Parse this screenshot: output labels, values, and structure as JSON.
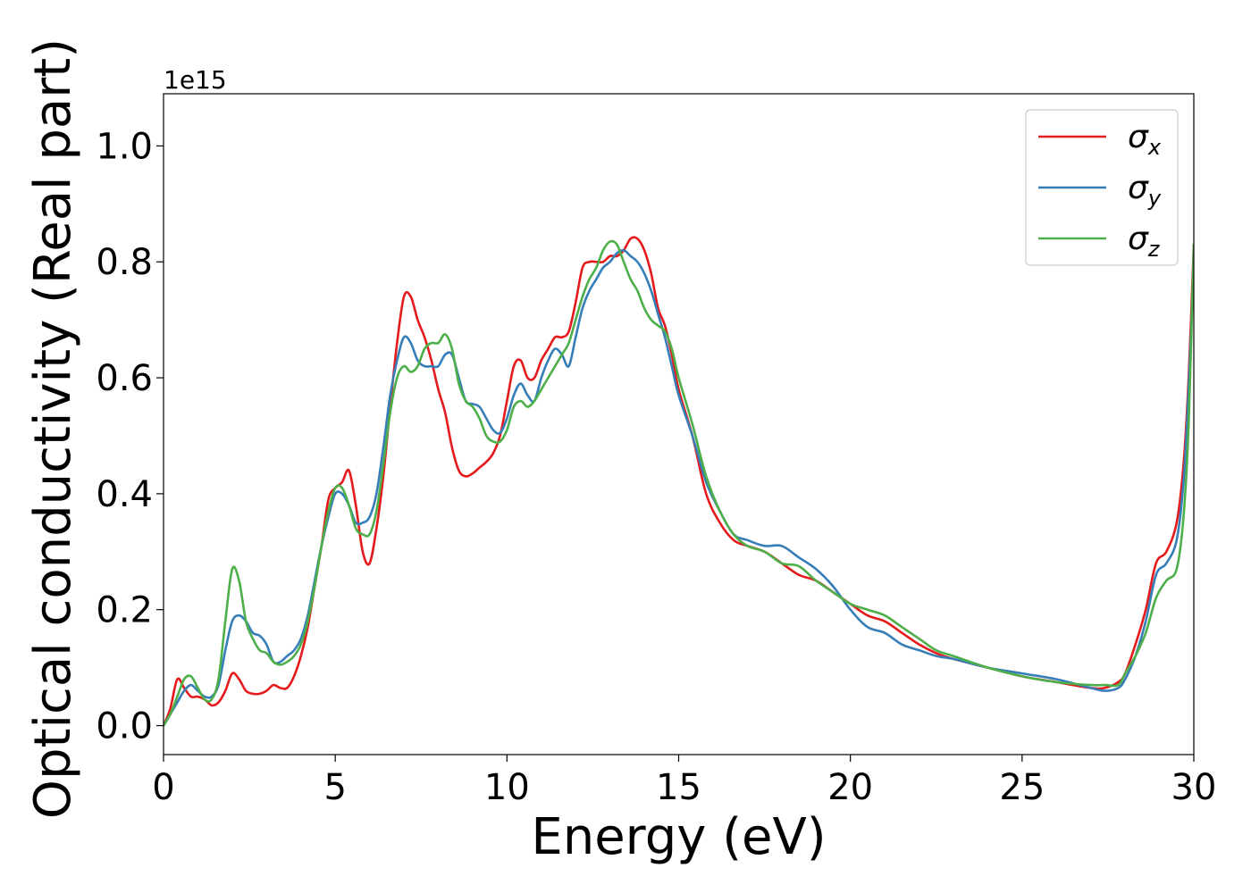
{
  "chart_data": {
    "type": "line",
    "title": "",
    "xlabel": "Energy (eV)",
    "ylabel": "Optical conductivity (Real part)",
    "y_offset_label": "1e15",
    "xlim": [
      0,
      30
    ],
    "ylim": [
      -0.05,
      1.09
    ],
    "x_ticks": [
      0,
      5,
      10,
      15,
      20,
      25,
      30
    ],
    "x_tick_labels": [
      "0",
      "5",
      "10",
      "15",
      "20",
      "25",
      "30"
    ],
    "y_ticks": [
      0.0,
      0.2,
      0.4,
      0.6,
      0.8,
      1.0
    ],
    "y_tick_labels": [
      "0.0",
      "0.2",
      "0.4",
      "0.6",
      "0.8",
      "1.0"
    ],
    "grid": false,
    "legend_position": "top-right",
    "series": [
      {
        "name": "σx",
        "symbol": "σ",
        "subscript": "x",
        "color": "#e41a1c",
        "x": [
          0,
          0.2,
          0.4,
          0.6,
          0.8,
          1.0,
          1.2,
          1.4,
          1.6,
          1.8,
          2.0,
          2.2,
          2.4,
          2.6,
          2.8,
          3.0,
          3.2,
          3.4,
          3.6,
          3.8,
          4.0,
          4.2,
          4.4,
          4.6,
          4.8,
          5.0,
          5.2,
          5.4,
          5.6,
          5.8,
          6.0,
          6.2,
          6.4,
          6.6,
          6.8,
          7.0,
          7.2,
          7.4,
          7.6,
          7.8,
          8.0,
          8.2,
          8.4,
          8.6,
          8.8,
          9.0,
          9.2,
          9.4,
          9.6,
          9.8,
          10.0,
          10.2,
          10.4,
          10.6,
          10.8,
          11.0,
          11.2,
          11.4,
          11.6,
          11.8,
          12.0,
          12.2,
          12.4,
          12.6,
          12.8,
          13.0,
          13.2,
          13.4,
          13.6,
          13.8,
          14.0,
          14.2,
          14.4,
          14.6,
          14.8,
          15.0,
          15.4,
          15.8,
          16.2,
          16.6,
          17.0,
          17.5,
          18.0,
          18.5,
          19.0,
          19.5,
          20.0,
          20.5,
          21.0,
          21.5,
          22.0,
          22.5,
          23.0,
          24.0,
          25.0,
          26.0,
          27.0,
          27.4,
          27.8,
          28.0,
          28.3,
          28.6,
          28.9,
          29.2,
          29.5,
          29.7,
          29.85,
          30.0
        ],
        "y": [
          0.0,
          0.03,
          0.08,
          0.065,
          0.05,
          0.05,
          0.045,
          0.035,
          0.04,
          0.06,
          0.09,
          0.08,
          0.06,
          0.055,
          0.055,
          0.06,
          0.07,
          0.065,
          0.065,
          0.085,
          0.12,
          0.17,
          0.24,
          0.31,
          0.39,
          0.41,
          0.42,
          0.44,
          0.38,
          0.3,
          0.28,
          0.34,
          0.43,
          0.55,
          0.66,
          0.74,
          0.74,
          0.7,
          0.67,
          0.63,
          0.58,
          0.54,
          0.48,
          0.44,
          0.43,
          0.435,
          0.445,
          0.455,
          0.47,
          0.5,
          0.56,
          0.62,
          0.63,
          0.6,
          0.6,
          0.63,
          0.65,
          0.67,
          0.67,
          0.68,
          0.73,
          0.79,
          0.8,
          0.8,
          0.8,
          0.81,
          0.81,
          0.82,
          0.84,
          0.84,
          0.82,
          0.78,
          0.72,
          0.69,
          0.64,
          0.58,
          0.5,
          0.4,
          0.35,
          0.32,
          0.31,
          0.3,
          0.28,
          0.26,
          0.25,
          0.23,
          0.21,
          0.19,
          0.18,
          0.16,
          0.14,
          0.125,
          0.115,
          0.1,
          0.085,
          0.075,
          0.065,
          0.065,
          0.075,
          0.09,
          0.14,
          0.2,
          0.28,
          0.3,
          0.35,
          0.45,
          0.6,
          0.83
        ]
      },
      {
        "name": "σy",
        "symbol": "σ",
        "subscript": "y",
        "color": "#377eb8",
        "x": [
          0,
          0.2,
          0.4,
          0.6,
          0.8,
          1.0,
          1.2,
          1.4,
          1.6,
          1.8,
          2.0,
          2.2,
          2.4,
          2.6,
          2.8,
          3.0,
          3.2,
          3.4,
          3.6,
          3.8,
          4.0,
          4.2,
          4.4,
          4.6,
          4.8,
          5.0,
          5.2,
          5.4,
          5.6,
          5.8,
          6.0,
          6.2,
          6.4,
          6.6,
          6.8,
          7.0,
          7.2,
          7.4,
          7.6,
          7.8,
          8.0,
          8.2,
          8.4,
          8.6,
          8.8,
          9.0,
          9.2,
          9.4,
          9.6,
          9.8,
          10.0,
          10.2,
          10.4,
          10.6,
          10.8,
          11.0,
          11.2,
          11.4,
          11.6,
          11.8,
          12.0,
          12.2,
          12.4,
          12.6,
          12.8,
          13.0,
          13.2,
          13.4,
          13.6,
          13.8,
          14.0,
          14.2,
          14.4,
          14.6,
          14.8,
          15.0,
          15.4,
          15.8,
          16.2,
          16.6,
          17.0,
          17.5,
          18.0,
          18.5,
          19.0,
          19.5,
          20.0,
          20.5,
          21.0,
          21.5,
          22.0,
          22.5,
          23.0,
          24.0,
          25.0,
          26.0,
          27.0,
          27.4,
          27.8,
          28.0,
          28.3,
          28.6,
          28.9,
          29.2,
          29.5,
          29.7,
          29.85,
          30.0
        ],
        "y": [
          0.0,
          0.02,
          0.04,
          0.06,
          0.07,
          0.06,
          0.05,
          0.05,
          0.07,
          0.13,
          0.18,
          0.19,
          0.18,
          0.16,
          0.155,
          0.14,
          0.11,
          0.11,
          0.12,
          0.13,
          0.15,
          0.19,
          0.25,
          0.31,
          0.36,
          0.4,
          0.4,
          0.38,
          0.35,
          0.35,
          0.36,
          0.4,
          0.48,
          0.57,
          0.63,
          0.67,
          0.66,
          0.63,
          0.62,
          0.62,
          0.62,
          0.64,
          0.64,
          0.6,
          0.56,
          0.555,
          0.55,
          0.53,
          0.51,
          0.505,
          0.53,
          0.57,
          0.59,
          0.57,
          0.56,
          0.6,
          0.63,
          0.65,
          0.64,
          0.62,
          0.67,
          0.72,
          0.75,
          0.77,
          0.79,
          0.8,
          0.815,
          0.82,
          0.81,
          0.8,
          0.78,
          0.75,
          0.71,
          0.67,
          0.62,
          0.57,
          0.5,
          0.42,
          0.37,
          0.33,
          0.32,
          0.31,
          0.31,
          0.29,
          0.27,
          0.24,
          0.2,
          0.17,
          0.16,
          0.14,
          0.13,
          0.12,
          0.115,
          0.1,
          0.09,
          0.08,
          0.065,
          0.06,
          0.065,
          0.08,
          0.12,
          0.18,
          0.26,
          0.28,
          0.32,
          0.42,
          0.58,
          0.8
        ]
      },
      {
        "name": "σz",
        "symbol": "σ",
        "subscript": "z",
        "color": "#4daf4a",
        "x": [
          0,
          0.2,
          0.4,
          0.6,
          0.8,
          1.0,
          1.2,
          1.4,
          1.6,
          1.8,
          2.0,
          2.2,
          2.4,
          2.6,
          2.8,
          3.0,
          3.2,
          3.4,
          3.6,
          3.8,
          4.0,
          4.2,
          4.4,
          4.6,
          4.8,
          5.0,
          5.2,
          5.4,
          5.6,
          5.8,
          6.0,
          6.2,
          6.4,
          6.6,
          6.8,
          7.0,
          7.2,
          7.4,
          7.6,
          7.8,
          8.0,
          8.2,
          8.4,
          8.6,
          8.8,
          9.0,
          9.2,
          9.4,
          9.6,
          9.8,
          10.0,
          10.2,
          10.4,
          10.6,
          10.8,
          11.0,
          11.2,
          11.4,
          11.6,
          11.8,
          12.0,
          12.2,
          12.4,
          12.6,
          12.8,
          13.0,
          13.2,
          13.4,
          13.6,
          13.8,
          14.0,
          14.2,
          14.4,
          14.6,
          14.8,
          15.0,
          15.4,
          15.8,
          16.2,
          16.6,
          17.0,
          17.5,
          18.0,
          18.5,
          19.0,
          19.5,
          20.0,
          20.5,
          21.0,
          21.5,
          22.0,
          22.5,
          23.0,
          24.0,
          25.0,
          26.0,
          27.0,
          27.4,
          27.8,
          28.0,
          28.3,
          28.6,
          28.9,
          29.2,
          29.5,
          29.7,
          29.85,
          30.0
        ],
        "y": [
          0.0,
          0.02,
          0.05,
          0.08,
          0.085,
          0.065,
          0.045,
          0.045,
          0.08,
          0.18,
          0.27,
          0.25,
          0.18,
          0.15,
          0.13,
          0.125,
          0.11,
          0.105,
          0.11,
          0.12,
          0.14,
          0.18,
          0.24,
          0.31,
          0.37,
          0.41,
          0.41,
          0.38,
          0.34,
          0.33,
          0.33,
          0.37,
          0.45,
          0.54,
          0.6,
          0.62,
          0.61,
          0.62,
          0.65,
          0.66,
          0.66,
          0.675,
          0.65,
          0.59,
          0.56,
          0.55,
          0.53,
          0.5,
          0.49,
          0.49,
          0.51,
          0.55,
          0.56,
          0.55,
          0.56,
          0.58,
          0.6,
          0.62,
          0.64,
          0.66,
          0.7,
          0.74,
          0.77,
          0.79,
          0.82,
          0.835,
          0.83,
          0.8,
          0.77,
          0.75,
          0.72,
          0.7,
          0.69,
          0.68,
          0.65,
          0.6,
          0.52,
          0.43,
          0.37,
          0.33,
          0.31,
          0.3,
          0.28,
          0.275,
          0.25,
          0.23,
          0.21,
          0.2,
          0.19,
          0.17,
          0.15,
          0.13,
          0.12,
          0.1,
          0.085,
          0.075,
          0.07,
          0.07,
          0.07,
          0.09,
          0.12,
          0.16,
          0.22,
          0.25,
          0.27,
          0.36,
          0.52,
          0.83
        ]
      }
    ]
  }
}
